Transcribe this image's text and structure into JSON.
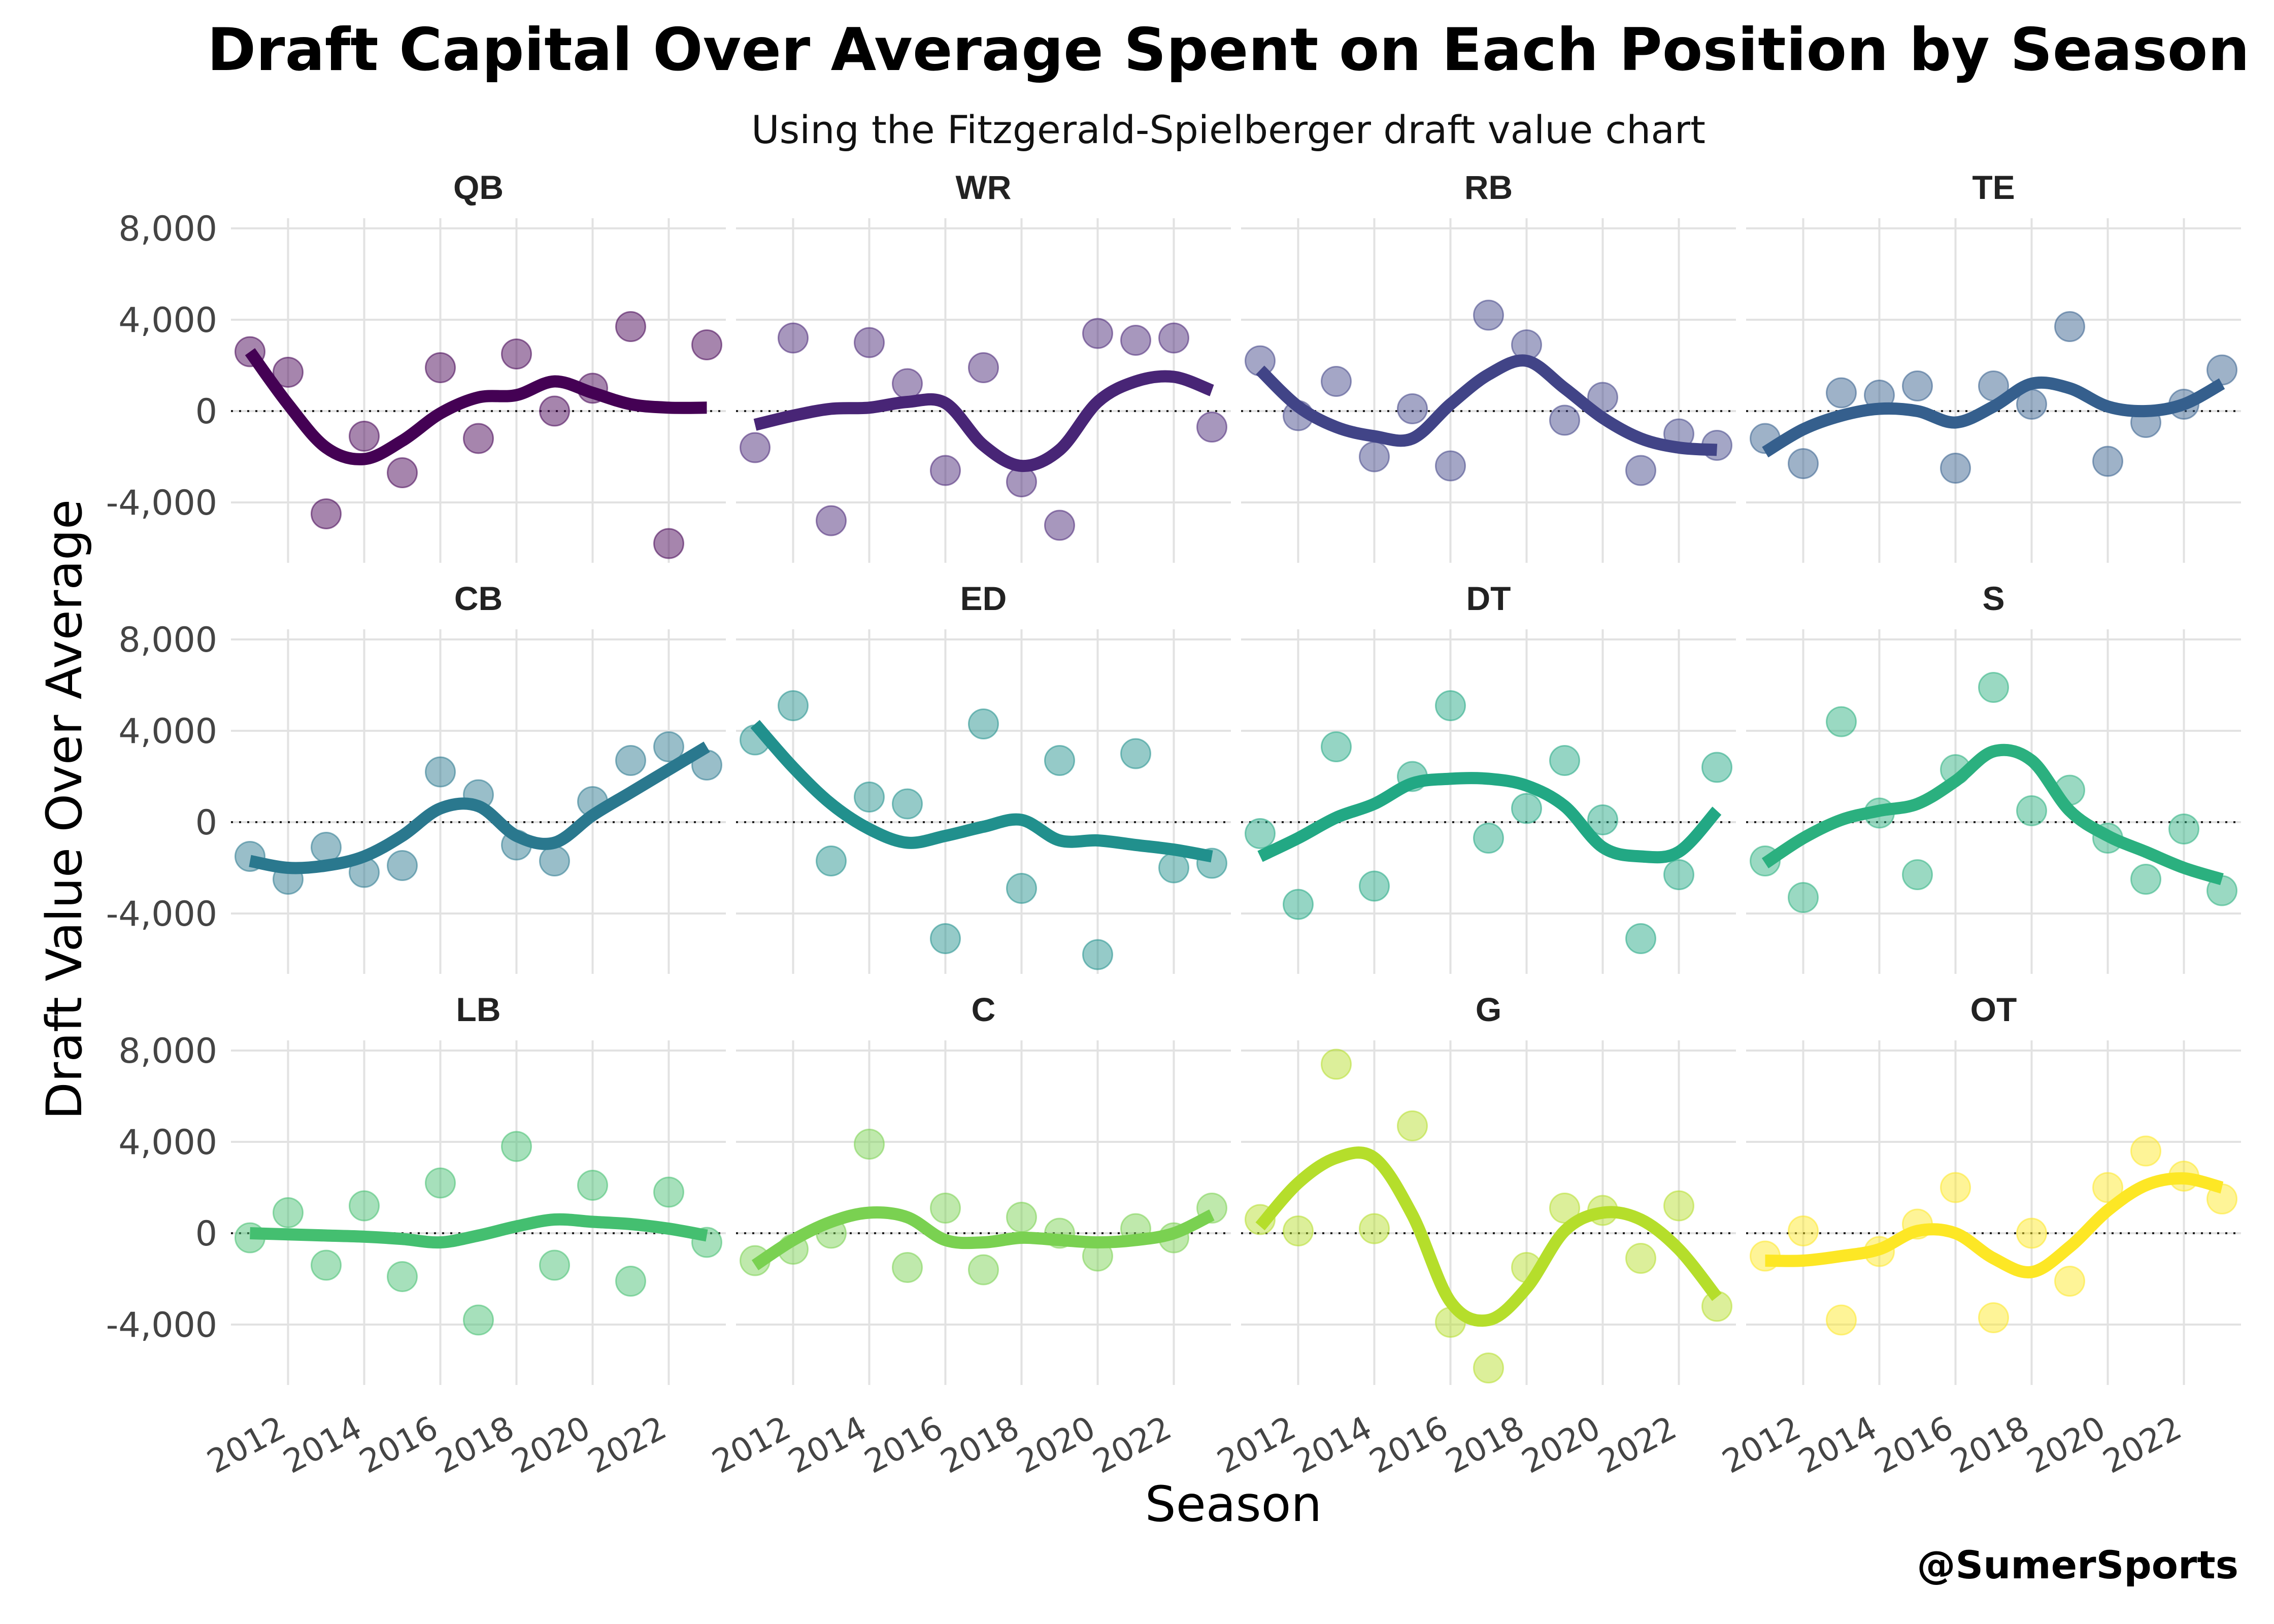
{
  "chart_data": {
    "type": "scatter",
    "title": "Draft Capital Over Average Spent on Each Position by Season",
    "subtitle": "Using the Fitzgerald-Spielberger draft value chart",
    "xlabel": "Season",
    "ylabel": "Draft Value Over Average",
    "credit": "@SumerSports",
    "x": [
      2011,
      2012,
      2013,
      2014,
      2015,
      2016,
      2017,
      2018,
      2019,
      2020,
      2021,
      2022,
      2023
    ],
    "xticks": [
      2012,
      2014,
      2016,
      2018,
      2020,
      2022
    ],
    "xtick_labels": [
      "2012",
      "2014",
      "2016",
      "2018",
      "2020",
      "2022"
    ],
    "yticks": [
      -4000,
      0,
      4000,
      8000
    ],
    "ytick_labels": [
      "-4,000",
      "0",
      "4,000",
      "8,000"
    ],
    "ylim": [
      -6200,
      8000
    ],
    "xlim": [
      2010.5,
      2023.5
    ],
    "reference_line": 0,
    "panels": [
      {
        "name": "QB",
        "color": "#440154",
        "points": [
          2600,
          1700,
          -4500,
          -1100,
          -2700,
          1900,
          -1200,
          2500,
          0,
          1000,
          3700,
          -5800,
          2900
        ],
        "trend": [
          2600,
          300,
          -1600,
          -2100,
          -1300,
          -100,
          600,
          700,
          1300,
          800,
          300,
          150,
          150
        ]
      },
      {
        "name": "WR",
        "color": "#482576",
        "points": [
          -1600,
          3200,
          -4800,
          3000,
          1200,
          -2600,
          1900,
          -3100,
          -5000,
          3400,
          3100,
          3200,
          -700
        ],
        "trend": [
          -600,
          -200,
          100,
          150,
          400,
          350,
          -1500,
          -2400,
          -1700,
          400,
          1300,
          1500,
          900
        ]
      },
      {
        "name": "RB",
        "color": "#414487",
        "points": [
          2200,
          -200,
          1300,
          -2000,
          100,
          -2400,
          4200,
          2900,
          -400,
          600,
          -2600,
          -1000,
          -1500
        ],
        "trend": [
          1800,
          200,
          -700,
          -1100,
          -1200,
          300,
          1600,
          2200,
          1000,
          -300,
          -1200,
          -1600,
          -1700
        ]
      },
      {
        "name": "TE",
        "color": "#355F8D",
        "points": [
          -1200,
          -2300,
          800,
          700,
          1100,
          -2500,
          1100,
          300,
          3700,
          -2200,
          -500,
          300,
          1800
        ],
        "trend": [
          -1800,
          -800,
          -200,
          100,
          0,
          -500,
          200,
          1200,
          1000,
          200,
          0,
          300,
          1200
        ]
      },
      {
        "name": "CB",
        "color": "#2A788E",
        "points": [
          -1500,
          -2500,
          -1100,
          -2200,
          -1900,
          2200,
          1200,
          -1000,
          -1700,
          900,
          2700,
          3300,
          2500
        ],
        "trend": [
          -1700,
          -2000,
          -1900,
          -1500,
          -600,
          600,
          700,
          -600,
          -900,
          300,
          1300,
          2300,
          3300
        ]
      },
      {
        "name": "ED",
        "color": "#21908D",
        "points": [
          3600,
          5100,
          -1700,
          1100,
          800,
          -5100,
          4300,
          -2900,
          2700,
          -5800,
          3000,
          -2000,
          -1800
        ],
        "trend": [
          4300,
          2400,
          800,
          -300,
          -900,
          -600,
          -200,
          100,
          -800,
          -800,
          -1000,
          -1200,
          -1500
        ]
      },
      {
        "name": "DT",
        "color": "#22A884",
        "points": [
          -500,
          -3600,
          3300,
          -2800,
          2000,
          5100,
          -700,
          600,
          2700,
          100,
          -5100,
          -2300,
          2400
        ],
        "trend": [
          -1500,
          -700,
          200,
          800,
          1700,
          1900,
          1900,
          1600,
          700,
          -1100,
          -1500,
          -1300,
          500
        ]
      },
      {
        "name": "S",
        "color": "#2BB07F",
        "points": [
          -1700,
          -3300,
          4400,
          400,
          -2300,
          2300,
          5900,
          500,
          1400,
          -700,
          -2500,
          -300,
          -3000
        ],
        "trend": [
          -1800,
          -700,
          100,
          500,
          800,
          1800,
          3100,
          2700,
          500,
          -600,
          -1300,
          -2000,
          -2500
        ]
      },
      {
        "name": "LB",
        "color": "#44BF70",
        "points": [
          -200,
          900,
          -1400,
          1200,
          -1900,
          2200,
          -3800,
          3800,
          -1400,
          2100,
          -2100,
          1800,
          -400
        ],
        "trend": [
          0,
          -50,
          -100,
          -150,
          -250,
          -400,
          -100,
          300,
          600,
          500,
          400,
          200,
          -100
        ]
      },
      {
        "name": "C",
        "color": "#7AD151",
        "points": [
          -1200,
          -700,
          0,
          3900,
          -1500,
          1100,
          -1600,
          700,
          0,
          -1000,
          200,
          -200,
          1100
        ],
        "trend": [
          -1400,
          -300,
          500,
          900,
          700,
          -300,
          -400,
          -200,
          -300,
          -400,
          -300,
          0,
          800
        ]
      },
      {
        "name": "G",
        "color": "#B5DE2B",
        "points": [
          600,
          100,
          7400,
          200,
          4700,
          -3900,
          -5900,
          -1500,
          1100,
          1000,
          -1100,
          1200,
          -3200
        ],
        "trend": [
          300,
          2200,
          3300,
          3300,
          800,
          -3000,
          -3800,
          -2400,
          100,
          900,
          600,
          -700,
          -2800
        ]
      },
      {
        "name": "OT",
        "color": "#FDE725",
        "points": [
          -1000,
          100,
          -3800,
          -800,
          400,
          2000,
          -3700,
          0,
          -2100,
          2000,
          3600,
          2500,
          1500
        ],
        "trend": [
          -1200,
          -1200,
          -1000,
          -700,
          100,
          0,
          -1100,
          -1700,
          -600,
          1000,
          2100,
          2400,
          2000
        ]
      }
    ]
  }
}
